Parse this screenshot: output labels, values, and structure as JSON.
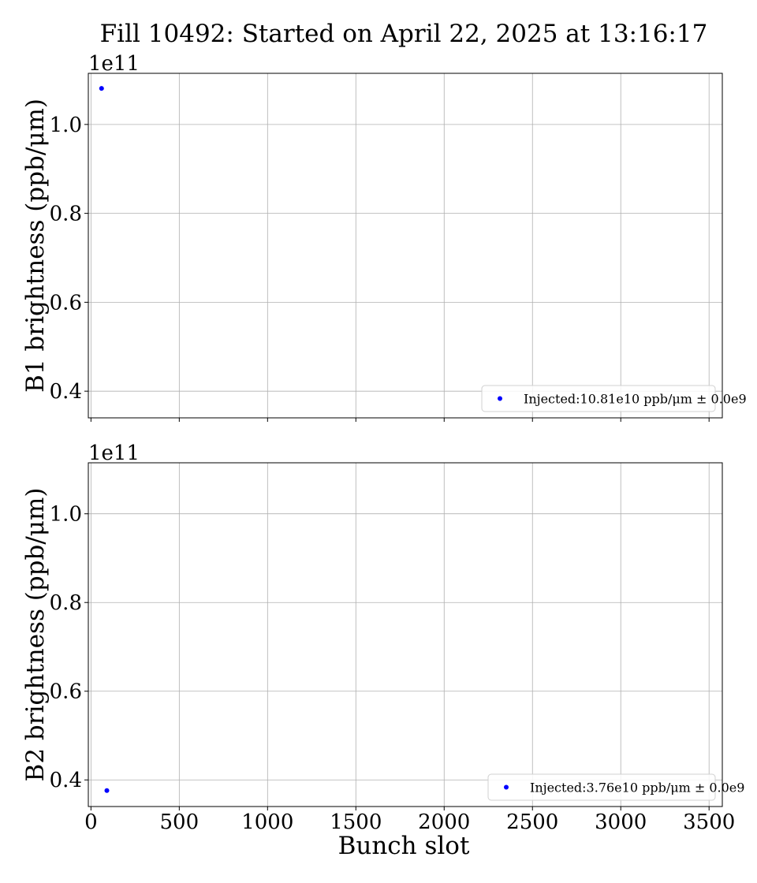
{
  "chart_data": {
    "title": "Fill 10492: Started on April 22, 2025 at 13:16:17",
    "xlabel": "Bunch slot",
    "xlim": [
      -15,
      3575
    ],
    "xticks": [
      0,
      500,
      1000,
      1500,
      2000,
      2500,
      3000,
      3500
    ],
    "grid": true,
    "panels": [
      {
        "type": "scatter",
        "ylabel": "B1 brightness (ppb/μm)",
        "offset_text": "1e11",
        "ylim": [
          0.34,
          1.115
        ],
        "yticks": [
          0.4,
          0.6,
          0.8,
          1.0
        ],
        "ytick_labels": [
          "0.4",
          "0.6",
          "0.8",
          "1.0"
        ],
        "show_xtick_labels": false,
        "legend_position": "lower right",
        "series": [
          {
            "name": "Injected:10.81e10 ppb/μm ± 0.0e9",
            "color": "#0000ff",
            "points": [
              {
                "x": 60,
                "y": 1.081
              }
            ]
          }
        ]
      },
      {
        "type": "scatter",
        "ylabel": "B2 brightness (ppb/μm)",
        "offset_text": "1e11",
        "ylim": [
          0.34,
          1.115
        ],
        "yticks": [
          0.4,
          0.6,
          0.8,
          1.0
        ],
        "ytick_labels": [
          "0.4",
          "0.6",
          "0.8",
          "1.0"
        ],
        "show_xtick_labels": true,
        "xtick_labels": [
          "0",
          "500",
          "1000",
          "1500",
          "2000",
          "2500",
          "3000",
          "3500"
        ],
        "legend_position": "lower right",
        "series": [
          {
            "name": "Injected:3.76e10 ppb/μm ± 0.0e9",
            "color": "#0000ff",
            "points": [
              {
                "x": 90,
                "y": 0.376
              }
            ]
          }
        ]
      }
    ]
  }
}
